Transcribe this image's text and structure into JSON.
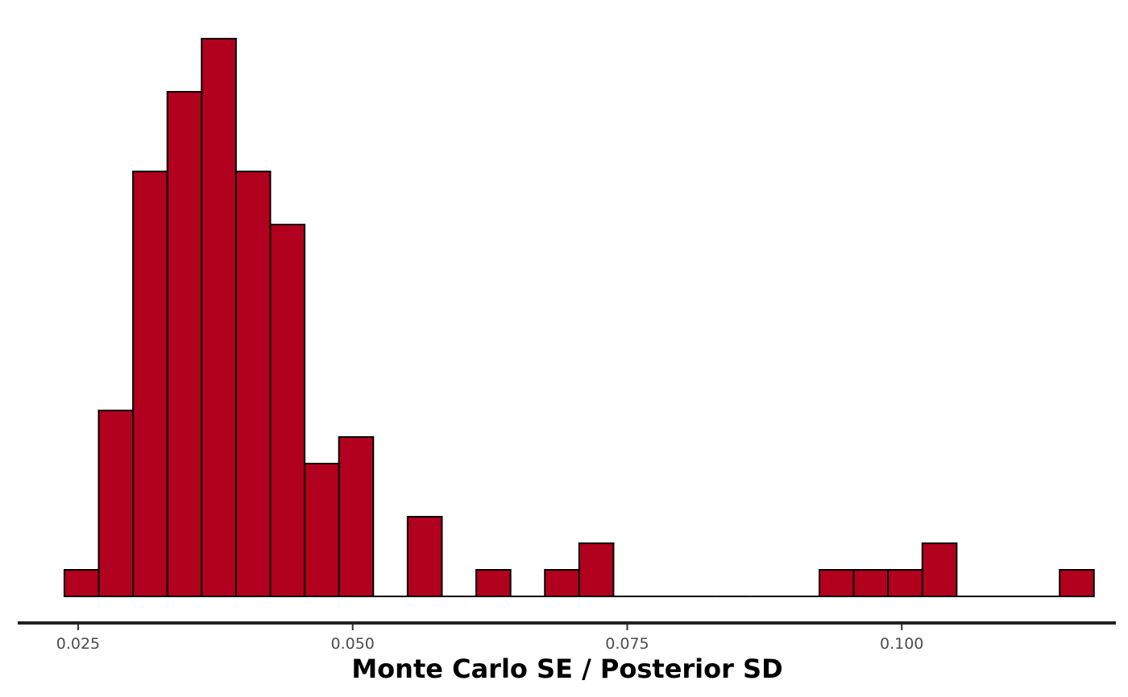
{
  "chart_data": {
    "type": "bar",
    "subtype": "histogram",
    "xlabel": "Monte Carlo SE / Posterior SD",
    "ylabel": "",
    "x_ticks": [
      0.025,
      0.05,
      0.075,
      0.1
    ],
    "x_tick_labels": [
      "0.025",
      "0.050",
      "0.075",
      "0.100"
    ],
    "xlim": [
      0.0195,
      0.1195
    ],
    "bin_start": 0.02375,
    "bin_width": 0.003125,
    "counts": [
      1,
      7,
      16,
      19,
      21,
      16,
      14,
      5,
      6,
      0,
      3,
      0,
      1,
      0,
      1,
      2,
      0,
      0,
      0,
      0,
      0,
      0,
      1,
      1,
      1,
      2,
      0,
      0,
      0,
      1
    ],
    "ylim": [
      0,
      21
    ],
    "grid": false,
    "legend": "none",
    "bar_color": "#b2001f",
    "bar_outline": "#000000"
  }
}
